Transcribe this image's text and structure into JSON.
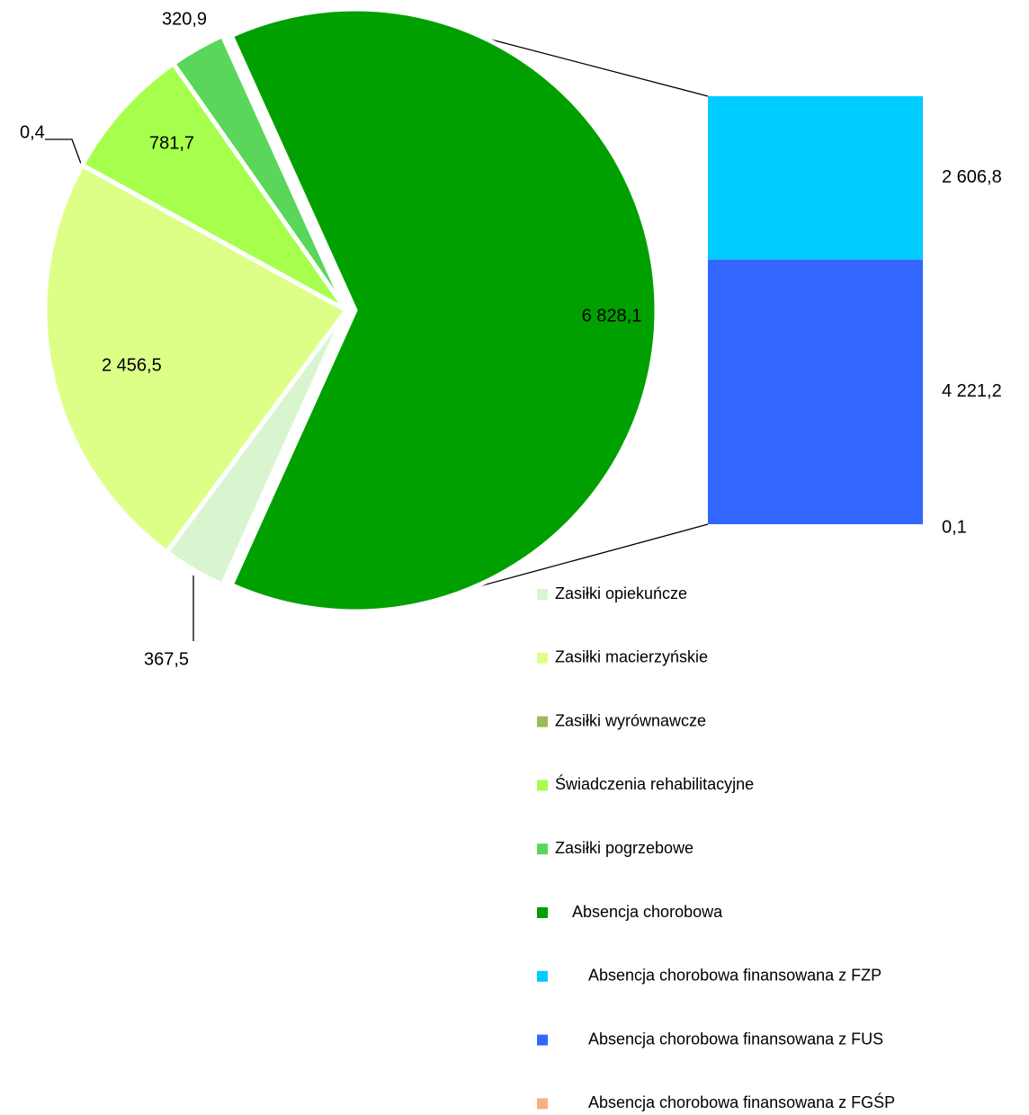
{
  "chart_data": {
    "type": "pie",
    "categories": [
      "Zasiłki opiekuńcze",
      "Zasiłki macierzyńskie",
      "Zasiłki wyrównawcze",
      "Świadczenia rehabilitacyjne",
      "Zasiłki pogrzebowe",
      "Absencja chorobowa"
    ],
    "values": [
      367.5,
      2456.5,
      0.4,
      781.7,
      320.9,
      6828.1
    ],
    "value_labels": [
      "367,5",
      "2 456,5",
      "0,4",
      "781,7",
      "320,9",
      "6 828,1"
    ],
    "colors": [
      "#d9f5d0",
      "#ddff88",
      "#9bbb59",
      "#a6ff4d",
      "#5ad65a",
      "#00a000"
    ],
    "breakdown": {
      "type": "bar",
      "categories": [
        "Absencja chorobowa finansowana z FZP",
        "Absencja chorobowa finansowana z FUS",
        "Absencja chorobowa finansowana z FGŚP"
      ],
      "values": [
        2606.8,
        4221.2,
        0.1
      ],
      "value_labels": [
        "2 606,8",
        "4 221,2",
        "0,1"
      ],
      "colors": [
        "#00ccff",
        "#3366ff",
        "#f4b183"
      ]
    },
    "legend": true
  }
}
